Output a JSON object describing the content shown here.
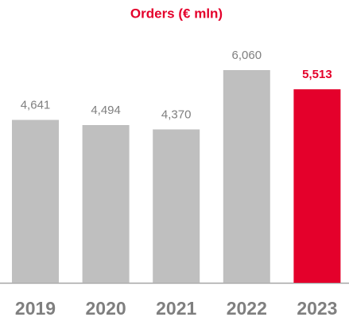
{
  "chart_data": {
    "type": "bar",
    "title": "Orders (€ mln)",
    "categories": [
      "2019",
      "2020",
      "2021",
      "2022",
      "2023"
    ],
    "values": [
      4641,
      4494,
      4370,
      6060,
      5513
    ],
    "value_labels": [
      "4,641",
      "4,494",
      "4,370",
      "6,060",
      "5,513"
    ],
    "color": "#bfbfbf",
    "colors": [
      "#bfbfbf",
      "#bfbfbf",
      "#bfbfbf",
      "#bfbfbf",
      "#e4002b"
    ]
  }
}
